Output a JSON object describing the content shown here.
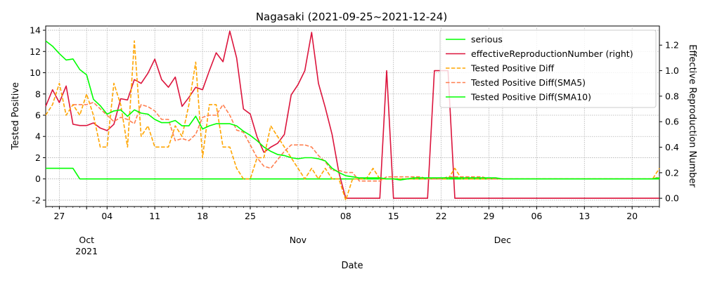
{
  "chart_data": {
    "type": "line",
    "title": "Nagasaki (2021-09-25~2021-12-24)",
    "xlabel": "Date",
    "ylabel": "Tested Positive",
    "ylabel_right": "Effective Reproduction Number",
    "xlim": [
      "2021-09-25",
      "2021-12-24"
    ],
    "ylim": [
      -2.6,
      14.4
    ],
    "ylim_right": [
      -0.065,
      1.35
    ],
    "yticks": [
      -2,
      0,
      2,
      4,
      6,
      8,
      10,
      12,
      14
    ],
    "yticks_right": [
      0.0,
      0.2,
      0.4,
      0.6,
      0.8,
      1.0,
      1.2
    ],
    "xticks": [
      {
        "date": "2021-09-27",
        "label": "27"
      },
      {
        "date": "2021-10-01",
        "label": "Oct\n2021"
      },
      {
        "date": "2021-10-04",
        "label": "04"
      },
      {
        "date": "2021-10-11",
        "label": "11"
      },
      {
        "date": "2021-10-18",
        "label": "18"
      },
      {
        "date": "2021-10-25",
        "label": "25"
      },
      {
        "date": "2021-11-01",
        "label": "Nov"
      },
      {
        "date": "2021-11-08",
        "label": "08"
      },
      {
        "date": "2021-11-15",
        "label": "15"
      },
      {
        "date": "2021-11-22",
        "label": "22"
      },
      {
        "date": "2021-11-29",
        "label": "29"
      },
      {
        "date": "2021-12-01",
        "label": "Dec"
      },
      {
        "date": "2021-12-06",
        "label": "06"
      },
      {
        "date": "2021-12-13",
        "label": "13"
      },
      {
        "date": "2021-12-20",
        "label": "20"
      }
    ],
    "grid": true,
    "legend_position": "top-right",
    "series": [
      {
        "name": "serious",
        "color": "#00ff00",
        "dash": "solid",
        "axis": "left",
        "start": "2021-09-25",
        "values": [
          1,
          1,
          1,
          1,
          1,
          0,
          0,
          0,
          0,
          0,
          0,
          0,
          0,
          0,
          0,
          0,
          0,
          0,
          0,
          0,
          0,
          0,
          0,
          0,
          0,
          0,
          0,
          0,
          0,
          0,
          0,
          0,
          0,
          0,
          0,
          0,
          0,
          0,
          0,
          0,
          0,
          0,
          0,
          0,
          0,
          0,
          0,
          0,
          0,
          0,
          0,
          0,
          0,
          0,
          0,
          0,
          0,
          0,
          0,
          0,
          0,
          0,
          0,
          0,
          0,
          0,
          0,
          0,
          0,
          0,
          0,
          0,
          0,
          0,
          0,
          0,
          0,
          0,
          0,
          0,
          0,
          0,
          0,
          0,
          0,
          0,
          0,
          0,
          0,
          0,
          0
        ]
      },
      {
        "name": "effectiveReproductionNumber (right)",
        "color": "#dc143c",
        "dash": "solid",
        "axis": "right",
        "start": "2021-09-25",
        "values": [
          0.72,
          0.85,
          0.75,
          0.88,
          0.58,
          0.57,
          0.57,
          0.59,
          0.55,
          0.53,
          0.58,
          0.78,
          0.77,
          0.93,
          0.9,
          0.98,
          1.09,
          0.93,
          0.87,
          0.95,
          0.72,
          0.79,
          0.87,
          0.85,
          1.0,
          1.14,
          1.07,
          1.31,
          1.1,
          0.7,
          0.66,
          0.48,
          0.36,
          0.4,
          0.43,
          0.5,
          0.81,
          0.89,
          1.0,
          1.3,
          0.9,
          0.71,
          0.5,
          0.2,
          0.0,
          0.0,
          0.0,
          0.0,
          0.0,
          0.0,
          1.0,
          0.0,
          0.0,
          0.0,
          0.0,
          0.0,
          0.0,
          1.0,
          1.0,
          1.0,
          0.0,
          0.0,
          0.0,
          0.0,
          0.0,
          0.0,
          0.0,
          0.0,
          0.0,
          0.0,
          0.0,
          0.0,
          0.0,
          0.0,
          0.0,
          0.0,
          0.0,
          0.0,
          0.0,
          0.0,
          0.0,
          0.0,
          0.0,
          0.0,
          0.0,
          0.0,
          0.0,
          0.0,
          0.0,
          0.0,
          0.0
        ]
      },
      {
        "name": "Tested Positive Diff",
        "color": "#ffa500",
        "dash": "dashed",
        "axis": "left",
        "start": "2021-09-25",
        "values": [
          6,
          7,
          9,
          6,
          7,
          6,
          8,
          6,
          3,
          3,
          9,
          7,
          3,
          13,
          4,
          5,
          3,
          3,
          3,
          5,
          4,
          7,
          11,
          2,
          7,
          7,
          3,
          3,
          1,
          0,
          0,
          2,
          2,
          5,
          4,
          3,
          2,
          1,
          0,
          1,
          0,
          1,
          0,
          0,
          -2,
          0,
          0,
          0,
          1,
          0,
          0,
          0,
          0,
          0,
          0,
          0,
          0,
          0,
          0,
          0,
          1,
          0,
          0,
          0,
          0,
          0,
          0,
          0,
          0,
          0,
          0,
          0,
          0,
          0,
          0,
          0,
          0,
          0,
          0,
          0,
          0,
          0,
          0,
          0,
          0,
          0,
          0,
          0,
          0,
          0,
          1
        ]
      },
      {
        "name": "Tested Positive Diff(SMA5)",
        "color": "#ff7f50",
        "dash": "dashed",
        "axis": "left",
        "start": "2021-09-29",
        "values": [
          7,
          7,
          7,
          7.2,
          6.6,
          6,
          5.4,
          5.8,
          5.6,
          5.2,
          7,
          6.8,
          6.4,
          5.6,
          5.6,
          3.6,
          3.8,
          3.6,
          4.2,
          5.8,
          6,
          6,
          7,
          6,
          4.6,
          4.4,
          3.2,
          2,
          1.2,
          1,
          1.8,
          2.6,
          3.2,
          3.2,
          3.2,
          3,
          2.2,
          1.6,
          0.8,
          0.8,
          0.6,
          0.6,
          -0.2,
          -0.2,
          -0.2,
          -0.2,
          0.2,
          0.2,
          0.2,
          0.2,
          0.2,
          0.2,
          0,
          0,
          0,
          0.2,
          0.2,
          0.2,
          0.2,
          0.2,
          0.2,
          0,
          0,
          0,
          0,
          0,
          0,
          0,
          0,
          0,
          0,
          0,
          0,
          0,
          0,
          0,
          0,
          0,
          0,
          0,
          0,
          0,
          0,
          0,
          0,
          0,
          0.2
        ]
      },
      {
        "name": "Tested Positive Diff(SMA10)",
        "color": "#00ff00",
        "dash": "solid",
        "axis": "left",
        "start": "2021-09-25",
        "values": [
          13,
          12.5,
          11.8,
          11.2,
          11.3,
          10.3,
          9.8,
          7.5,
          6.9,
          6.1,
          6.4,
          6.5,
          5.9,
          6.5,
          6.2,
          6.1,
          5.6,
          5.3,
          5.3,
          5.5,
          5,
          5,
          5.9,
          4.7,
          5,
          5.2,
          5.2,
          5.2,
          5,
          4.5,
          4.1,
          3.6,
          3,
          2.6,
          2.3,
          2.2,
          2,
          1.9,
          2,
          2,
          1.9,
          1.7,
          1,
          0.6,
          0.3,
          0.2,
          0.1,
          0.1,
          0.1,
          0.1,
          0,
          0,
          -0.1,
          0,
          0.1,
          0.1,
          0.1,
          0.1,
          0.1,
          0.1,
          0.1,
          0.1,
          0.1,
          0.1,
          0.1,
          0.1,
          0.1,
          0,
          0,
          0,
          0,
          0,
          0,
          0,
          0,
          0,
          0,
          0,
          0,
          0,
          0,
          0,
          0,
          0,
          0,
          0,
          0,
          0,
          0,
          0,
          0.1
        ]
      }
    ]
  }
}
